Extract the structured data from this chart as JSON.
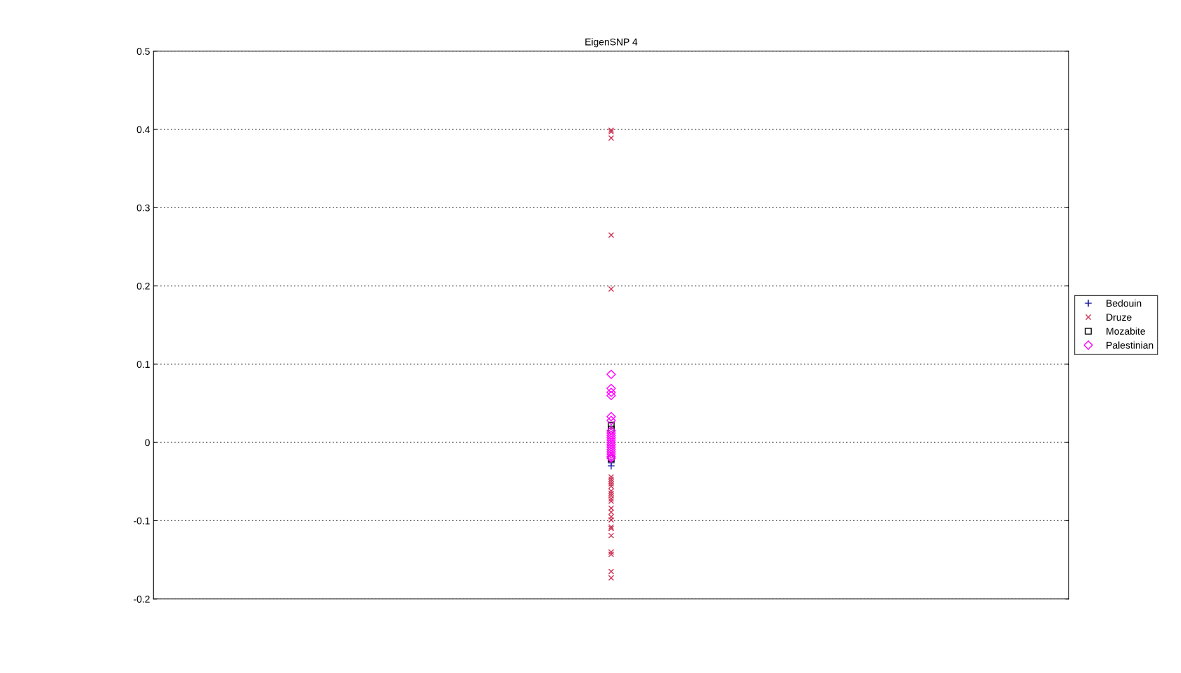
{
  "chart_data": {
    "type": "scatter",
    "title": "EigenSNP 4",
    "categories": [
      null
    ],
    "ylim": [
      -0.2,
      0.5
    ],
    "yticks": [
      -0.2,
      -0.1,
      0,
      0.1,
      0.2,
      0.3,
      0.4,
      0.5
    ],
    "grid": "y",
    "legend": "right",
    "tick_labels": "y",
    "series": [
      {
        "name": "Bedouin",
        "color": "#1a1aa0",
        "marker": "plus",
        "x": [
          null,
          null
        ],
        "values": [
          -0.026,
          -0.03
        ]
      },
      {
        "name": "Druze",
        "color": "#cc3355",
        "marker": "cross",
        "x": [
          null,
          null,
          null,
          null,
          null,
          null,
          null,
          null,
          null,
          null,
          null,
          null,
          null,
          null,
          null,
          null,
          null,
          null,
          null,
          null,
          null,
          null,
          null,
          null,
          null,
          null
        ],
        "values": [
          0.399,
          0.397,
          0.389,
          0.265,
          0.196,
          -0.044,
          -0.047,
          -0.05,
          -0.053,
          -0.056,
          -0.062,
          -0.065,
          -0.068,
          -0.072,
          -0.075,
          -0.084,
          -0.089,
          -0.095,
          -0.099,
          -0.108,
          -0.11,
          -0.119,
          -0.14,
          -0.143,
          -0.165,
          -0.173
        ]
      },
      {
        "name": "Mozabite",
        "color": "#000000",
        "marker": "square",
        "x": [
          null,
          null,
          null
        ],
        "values": [
          0.022,
          0.017,
          -0.021
        ]
      },
      {
        "name": "Palestinian",
        "color": "#ff00ff",
        "marker": "diamond",
        "x": [
          null,
          null,
          null,
          null,
          null,
          null,
          null,
          null,
          null,
          null,
          null,
          null,
          null,
          null,
          null,
          null,
          null,
          null,
          null
        ],
        "values": [
          0.087,
          0.069,
          0.064,
          0.06,
          0.033,
          0.028,
          0.015,
          0.012,
          0.009,
          0.006,
          0.003,
          0.0,
          -0.003,
          -0.006,
          -0.009,
          -0.012,
          -0.015,
          -0.018,
          -0.02
        ]
      }
    ]
  }
}
